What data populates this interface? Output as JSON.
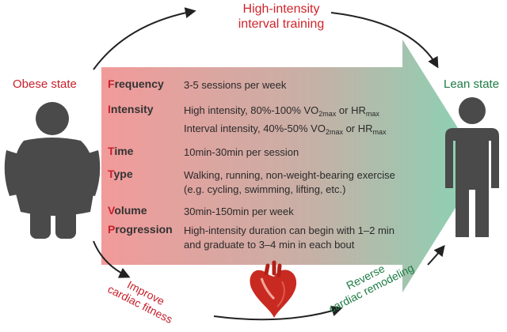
{
  "top_label": [
    "High-intensity",
    "interval training"
  ],
  "left_state": "Obese state",
  "right_state": "Lean state",
  "bottom_left_label": [
    "Improve",
    "cardiac fitness"
  ],
  "bottom_right_label": [
    "Reverse",
    "cardiac remodeling"
  ],
  "colors": {
    "red": "#c8202b",
    "green": "#1e7b45",
    "gradient_start": "#f19a9a",
    "gradient_end": "#8ed3b9",
    "silhouette": "#4a4a4a"
  },
  "icons": [
    "obese-person-icon",
    "lean-person-icon",
    "heart-icon"
  ],
  "rows": [
    {
      "first": "F",
      "rest": "requency",
      "lines": [
        "3-5 sessions per week"
      ]
    },
    {
      "first": "I",
      "rest": "ntensity",
      "lines": [
        {
          "pre": "High intensity, 80%-100% VO",
          "sub1": "2max",
          "mid": " or HR",
          "sub2": "max"
        },
        {
          "pre": "Interval intensity, 40%-50% VO",
          "sub1": "2max",
          "mid": " or HR",
          "sub2": "max"
        }
      ]
    },
    {
      "first": "T",
      "rest": "ime",
      "lines": [
        "10min-30min per session"
      ]
    },
    {
      "first": "T",
      "rest": "ype",
      "lines": [
        "Walking, running, non-weight-bearing exercise",
        "(e.g. cycling, swimming, lifting, etc.)"
      ]
    },
    {
      "first": "V",
      "rest": "olume",
      "lines": [
        "30min-150min per week"
      ]
    },
    {
      "first": "P",
      "rest": "rogression",
      "lines": [
        "High-intensity duration can begin with 1–2 min",
        "and graduate to 3–4 min in each bout"
      ]
    }
  ]
}
